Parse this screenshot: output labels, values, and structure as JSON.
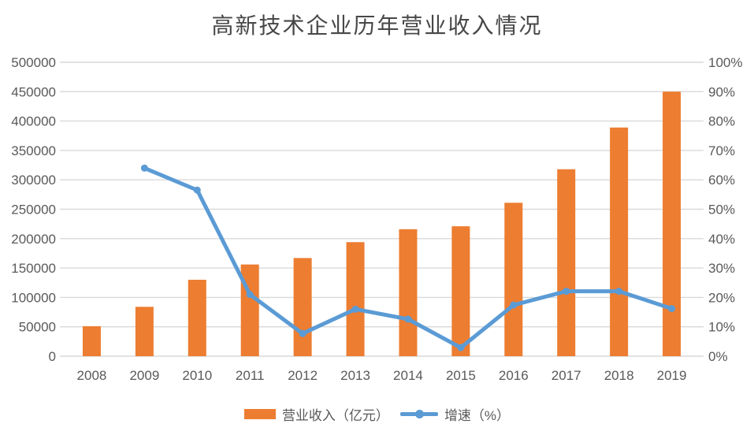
{
  "chart_data": {
    "type": "bar",
    "subtype": "combo-bar-line",
    "title": "高新技术企业历年营业收入情况",
    "categories": [
      "2008",
      "2009",
      "2010",
      "2011",
      "2012",
      "2013",
      "2014",
      "2015",
      "2016",
      "2017",
      "2018",
      "2019"
    ],
    "series": [
      {
        "name": "营业收入（亿元）",
        "type": "bar",
        "axis": "left",
        "color": "#ED7D31",
        "values": [
          51000,
          84000,
          130000,
          156000,
          167000,
          194000,
          216000,
          221000,
          261000,
          318000,
          389000,
          450000
        ]
      },
      {
        "name": "增速（%）",
        "type": "line",
        "axis": "right",
        "color": "#5B9BD5",
        "values": [
          null,
          64,
          56.5,
          21,
          7.7,
          16,
          12.6,
          2.9,
          17.4,
          22.1,
          22.1,
          16.2
        ]
      }
    ],
    "left_axis": {
      "min": 0,
      "max": 500000,
      "step": 50000,
      "tick_labels": [
        "0",
        "50000",
        "100000",
        "150000",
        "200000",
        "250000",
        "300000",
        "350000",
        "400000",
        "450000",
        "500000"
      ]
    },
    "right_axis": {
      "min": 0,
      "max": 100,
      "step": 10,
      "tick_labels": [
        "0%",
        "10%",
        "20%",
        "30%",
        "40%",
        "50%",
        "60%",
        "70%",
        "80%",
        "90%",
        "100%"
      ]
    },
    "grid": true,
    "gridline_color": "#D9D9D9",
    "label_color": "#595959",
    "legend_position": "bottom"
  }
}
